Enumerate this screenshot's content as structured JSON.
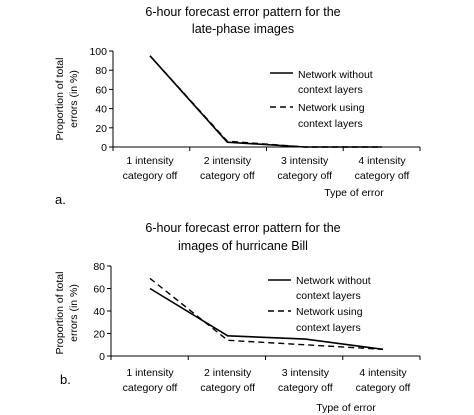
{
  "chart_data": [
    {
      "type": "line",
      "panel_label": "a.",
      "title_lines": [
        "6-hour forecast error pattern for the",
        "late-phase images"
      ],
      "ylabel_lines": [
        "Proportion of total",
        "errors (in %)"
      ],
      "xlabel": "Type of error",
      "categories": [
        [
          "1 intensity",
          "category off"
        ],
        [
          "2 intensity",
          "category off"
        ],
        [
          "3 intensity",
          "category off"
        ],
        [
          "4 intensity",
          "category off"
        ]
      ],
      "ylim": [
        0,
        100
      ],
      "yticks": [
        0,
        20,
        40,
        60,
        80,
        100
      ],
      "legend_position": "right",
      "series": [
        {
          "name_lines": [
            "Network without",
            "context layers"
          ],
          "style": "solid",
          "values": [
            95,
            5,
            0,
            0
          ]
        },
        {
          "name_lines": [
            "Network using",
            "context layers"
          ],
          "style": "dashed",
          "values": [
            95,
            6,
            0,
            0
          ]
        }
      ]
    },
    {
      "type": "line",
      "panel_label": "b.",
      "title_lines": [
        "6-hour forecast error pattern for the",
        "images of hurricane Bill"
      ],
      "ylabel_lines": [
        "Proportion of total",
        "errors (in %)"
      ],
      "xlabel": "Type of error",
      "categories": [
        [
          "1 intensity",
          "category off"
        ],
        [
          "2 intensity",
          "category off"
        ],
        [
          "3 intensity",
          "category off"
        ],
        [
          "4 intensity",
          "category off"
        ]
      ],
      "ylim": [
        0,
        80
      ],
      "yticks": [
        0,
        20,
        40,
        60,
        80
      ],
      "legend_position": "right",
      "series": [
        {
          "name_lines": [
            "Network without",
            "context layers"
          ],
          "style": "solid",
          "values": [
            60,
            18,
            15,
            6
          ]
        },
        {
          "name_lines": [
            "Network using",
            "context layers"
          ],
          "style": "dashed",
          "values": [
            69,
            14,
            10,
            6
          ]
        }
      ]
    }
  ]
}
